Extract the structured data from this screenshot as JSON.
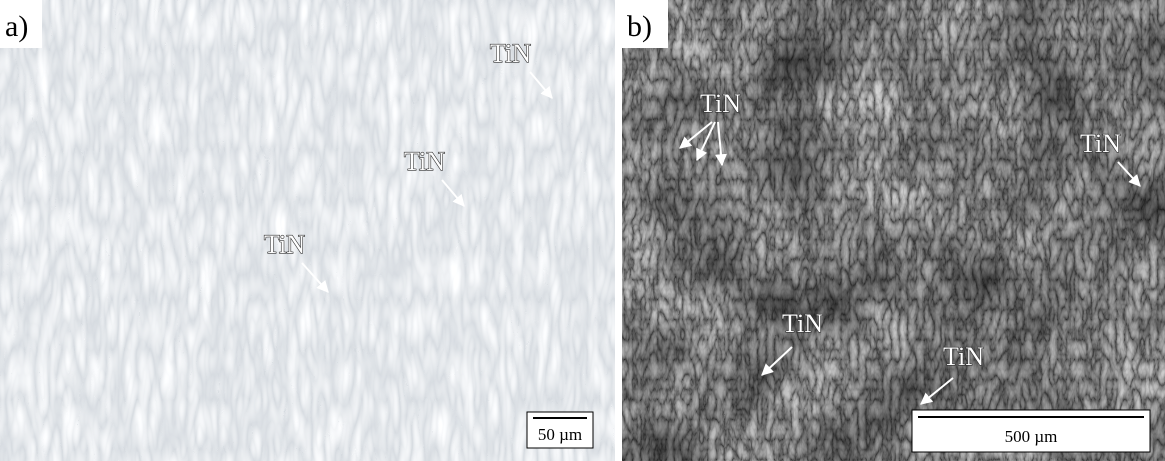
{
  "panels": [
    {
      "label": "a)",
      "annotations": [
        "TiN",
        "TiN",
        "TiN"
      ],
      "scale_bar": "50 µm"
    },
    {
      "label": "b)",
      "annotations": [
        "TiN",
        "TiN",
        "TiN",
        "TiN"
      ],
      "scale_bar": "500 µm"
    }
  ]
}
